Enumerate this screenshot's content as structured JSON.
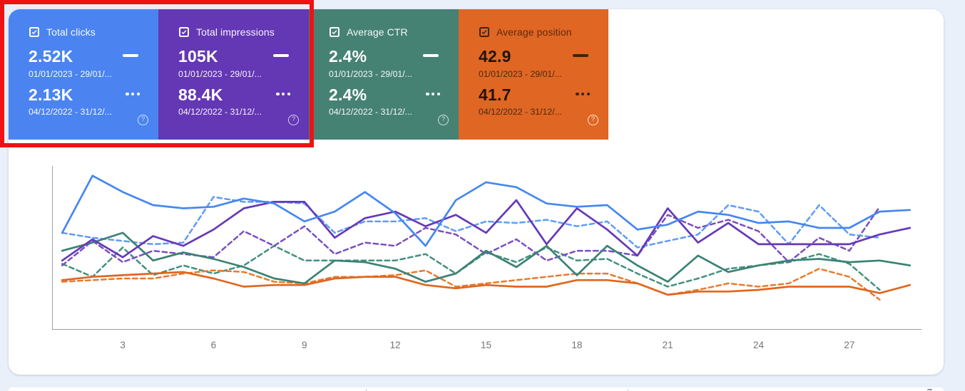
{
  "cards": [
    {
      "label": "Total clicks",
      "value_current": "2.52K",
      "range_current": "01/01/2023 - 29/01/...",
      "value_previous": "2.13K",
      "range_previous": "04/12/2022 - 31/12/...",
      "color": "#4b84f0",
      "help": "?"
    },
    {
      "label": "Total impressions",
      "value_current": "105K",
      "range_current": "01/01/2023 - 29/01/...",
      "value_previous": "88.4K",
      "range_previous": "04/12/2022 - 31/12/...",
      "color": "#6437b4",
      "help": "?"
    },
    {
      "label": "Average CTR",
      "value_current": "2.4%",
      "range_current": "01/01/2023 - 29/01/...",
      "value_previous": "2.4%",
      "range_previous": "04/12/2022 - 31/12/...",
      "color": "#468273",
      "help": "?"
    },
    {
      "label": "Average position",
      "value_current": "42.9",
      "range_current": "01/01/2023 - 29/01/...",
      "value_previous": "41.7",
      "range_previous": "04/12/2022 - 31/12/...",
      "color": "#e06624",
      "help": "?"
    }
  ],
  "annotation": {
    "type": "highlight-rectangle",
    "color": "#ee1212"
  },
  "chart_data": {
    "type": "line",
    "x_days": "1-29",
    "xticks": [
      3,
      6,
      9,
      12,
      15,
      18,
      21,
      24,
      27
    ],
    "ylabel": "",
    "xlabel": "",
    "grid": false,
    "note": "values are relative 0-100 of plot height; no y-axis labels shown",
    "series": [
      {
        "name": "Total clicks (01/01/2023 - 29/01/2023)",
        "style": "solid",
        "color": "#4687f0",
        "values": [
          59,
          94,
          84,
          76,
          74,
          75,
          80,
          77,
          66,
          72,
          84,
          71,
          51,
          79,
          90,
          87,
          77,
          75,
          76,
          61,
          64,
          72,
          70,
          65,
          66,
          62,
          62,
          72,
          73
        ]
      },
      {
        "name": "Total clicks (04/12/2022 - 31/12/2022)",
        "style": "dashed",
        "color": "#5f9cf6",
        "values": [
          59,
          56,
          54,
          52,
          53,
          81,
          78,
          78,
          77,
          59,
          66,
          66,
          68,
          60,
          66,
          65,
          67,
          63,
          66,
          50,
          54,
          58,
          76,
          72,
          52,
          76,
          58,
          56
        ]
      },
      {
        "name": "Total impressions (01/01/2023 - 29/01/2023)",
        "style": "solid",
        "color": "#6639b7",
        "values": [
          42,
          55,
          44,
          57,
          51,
          61,
          74,
          78,
          78,
          56,
          68,
          72,
          63,
          70,
          59,
          79,
          52,
          74,
          61,
          45,
          74,
          53,
          65,
          52,
          52,
          52,
          52,
          58,
          62
        ]
      },
      {
        "name": "Total impressions (04/12/2022 - 31/12/2022)",
        "style": "dashed",
        "color": "#7a4fc0",
        "values": [
          39,
          54,
          41,
          48,
          46,
          44,
          60,
          51,
          63,
          46,
          53,
          51,
          62,
          58,
          46,
          55,
          42,
          48,
          48,
          45,
          70,
          62,
          67,
          60,
          41,
          56,
          48,
          75
        ]
      },
      {
        "name": "Average CTR (01/01/2023 - 29/01/2023)",
        "style": "solid",
        "color": "#3b8274",
        "values": [
          48,
          53,
          59,
          42,
          47,
          43,
          38,
          31,
          28,
          42,
          41,
          37,
          29,
          34,
          48,
          38,
          51,
          33,
          51,
          39,
          29,
          45,
          35,
          39,
          42,
          43,
          41,
          42,
          39
        ]
      },
      {
        "name": "Average CTR (04/12/2022 - 31/12/2022)",
        "style": "dashed",
        "color": "#44907e",
        "values": [
          40,
          32,
          50,
          33,
          39,
          34,
          39,
          51,
          42,
          42,
          42,
          42,
          46,
          34,
          47,
          41,
          50,
          42,
          43,
          34,
          26,
          31,
          37,
          39,
          41,
          46,
          40,
          24
        ]
      },
      {
        "name": "Average position (01/01/2023 - 29/01/2023)",
        "style": "solid",
        "color": "#e0661f",
        "values": [
          30,
          32,
          33,
          34,
          35,
          31,
          26,
          27,
          27,
          31,
          32,
          32,
          27,
          25,
          27,
          26,
          26,
          30,
          30,
          28,
          21,
          23,
          23,
          24,
          26,
          26,
          26,
          22,
          27
        ]
      },
      {
        "name": "Average position (04/12/2022 - 31/12/2022)",
        "style": "dashed",
        "color": "#e87a2e",
        "values": [
          29,
          30,
          31,
          31,
          34,
          36,
          35,
          29,
          28,
          32,
          32,
          33,
          36,
          26,
          28,
          30,
          32,
          34,
          34,
          28,
          21,
          24,
          28,
          26,
          28,
          37,
          32,
          18
        ]
      }
    ]
  }
}
